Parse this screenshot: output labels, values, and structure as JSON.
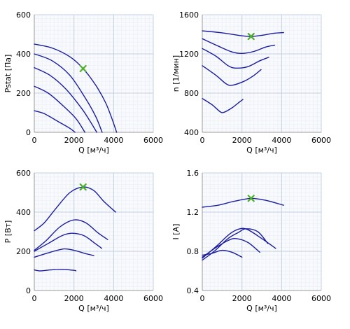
{
  "chart_data": [
    {
      "type": "line",
      "xlabel": "Q [м³/ч]",
      "ylabel": "Pstat [Па]",
      "xlim": [
        0,
        6000
      ],
      "ylim": [
        0,
        600
      ],
      "xticks": [
        0,
        2000,
        4000,
        6000
      ],
      "yticks": [
        0,
        200,
        400,
        600
      ],
      "xtick_labels": [
        "0",
        "2000",
        "4000",
        "6000"
      ],
      "ytick_labels": [
        "0",
        "200",
        "400",
        "600"
      ],
      "grid": true,
      "line_color": "#1c1c9e",
      "marker_color": "#4caf28",
      "series": [
        {
          "points": [
            [
              0,
              450
            ],
            [
              900,
              430
            ],
            [
              1800,
              385
            ],
            [
              2460,
              325
            ],
            [
              3100,
              240
            ],
            [
              3600,
              150
            ],
            [
              3950,
              60
            ],
            [
              4150,
              0
            ]
          ]
        },
        {
          "points": [
            [
              0,
              400
            ],
            [
              900,
              365
            ],
            [
              1800,
              290
            ],
            [
              2600,
              170
            ],
            [
              3100,
              80
            ],
            [
              3420,
              0
            ]
          ]
        },
        {
          "points": [
            [
              0,
              330
            ],
            [
              800,
              290
            ],
            [
              1600,
              220
            ],
            [
              2400,
              120
            ],
            [
              2850,
              50
            ],
            [
              3150,
              0
            ]
          ]
        },
        {
          "points": [
            [
              0,
              235
            ],
            [
              700,
              200
            ],
            [
              1400,
              140
            ],
            [
              2100,
              70
            ],
            [
              2550,
              0
            ]
          ]
        },
        {
          "points": [
            [
              0,
              110
            ],
            [
              500,
              95
            ],
            [
              1200,
              55
            ],
            [
              1800,
              20
            ],
            [
              2050,
              0
            ]
          ]
        }
      ],
      "marker": {
        "x": 2460,
        "y": 325
      }
    },
    {
      "type": "line",
      "xlabel": "Q [м³/ч]",
      "ylabel": "n [1/мин]",
      "xlim": [
        0,
        6000
      ],
      "ylim": [
        400,
        1600
      ],
      "xticks": [
        0,
        2000,
        4000,
        6000
      ],
      "yticks": [
        400,
        800,
        1200,
        1600
      ],
      "xtick_labels": [
        "0",
        "2000",
        "4000",
        "6000"
      ],
      "ytick_labels": [
        "400",
        "800",
        "1200",
        "1600"
      ],
      "grid": true,
      "line_color": "#1c1c9e",
      "marker_color": "#4caf28",
      "series": [
        {
          "points": [
            [
              0,
              1435
            ],
            [
              1000,
              1415
            ],
            [
              2000,
              1385
            ],
            [
              2460,
              1378
            ],
            [
              3000,
              1390
            ],
            [
              3600,
              1410
            ],
            [
              4100,
              1418
            ]
          ]
        },
        {
          "points": [
            [
              0,
              1355
            ],
            [
              800,
              1280
            ],
            [
              1500,
              1220
            ],
            [
              2000,
              1205
            ],
            [
              2600,
              1225
            ],
            [
              3200,
              1270
            ],
            [
              3650,
              1290
            ]
          ]
        },
        {
          "points": [
            [
              0,
              1255
            ],
            [
              700,
              1175
            ],
            [
              1300,
              1080
            ],
            [
              1700,
              1055
            ],
            [
              2300,
              1070
            ],
            [
              2900,
              1130
            ],
            [
              3350,
              1165
            ]
          ]
        },
        {
          "points": [
            [
              0,
              1080
            ],
            [
              700,
              980
            ],
            [
              1200,
              895
            ],
            [
              1500,
              880
            ],
            [
              2100,
              920
            ],
            [
              2600,
              980
            ],
            [
              2960,
              1040
            ]
          ]
        },
        {
          "points": [
            [
              0,
              745
            ],
            [
              500,
              680
            ],
            [
              900,
              610
            ],
            [
              1100,
              605
            ],
            [
              1500,
              650
            ],
            [
              1850,
              705
            ],
            [
              2050,
              735
            ]
          ]
        }
      ],
      "marker": {
        "x": 2460,
        "y": 1378
      }
    },
    {
      "type": "line",
      "xlabel": "Q [м³/ч]",
      "ylabel": "P [Вт]",
      "xlim": [
        0,
        6000
      ],
      "ylim": [
        0,
        600
      ],
      "xticks": [
        0,
        2000,
        4000,
        6000
      ],
      "yticks": [
        0,
        200,
        400,
        600
      ],
      "xtick_labels": [
        "0",
        "2000",
        "4000",
        "6000"
      ],
      "ytick_labels": [
        "0",
        "200",
        "400",
        "600"
      ],
      "grid": true,
      "line_color": "#1c1c9e",
      "marker_color": "#4caf28",
      "series": [
        {
          "points": [
            [
              0,
              305
            ],
            [
              500,
              345
            ],
            [
              1100,
              420
            ],
            [
              1800,
              500
            ],
            [
              2460,
              528
            ],
            [
              3000,
              510
            ],
            [
              3500,
              455
            ],
            [
              4100,
              400
            ]
          ]
        },
        {
          "points": [
            [
              0,
              205
            ],
            [
              600,
              255
            ],
            [
              1300,
              325
            ],
            [
              2000,
              360
            ],
            [
              2600,
              345
            ],
            [
              3200,
              295
            ],
            [
              3700,
              260
            ]
          ]
        },
        {
          "points": [
            [
              0,
              200
            ],
            [
              700,
              240
            ],
            [
              1400,
              280
            ],
            [
              1900,
              292
            ],
            [
              2500,
              280
            ],
            [
              3000,
              245
            ],
            [
              3400,
              215
            ]
          ]
        },
        {
          "points": [
            [
              0,
              170
            ],
            [
              800,
              195
            ],
            [
              1500,
              212
            ],
            [
              2000,
              205
            ],
            [
              2600,
              188
            ],
            [
              3000,
              178
            ]
          ]
        },
        {
          "points": [
            [
              0,
              105
            ],
            [
              300,
              100
            ],
            [
              800,
              105
            ],
            [
              1400,
              108
            ],
            [
              2000,
              103
            ],
            [
              2100,
              100
            ]
          ]
        }
      ],
      "marker": {
        "x": 2460,
        "y": 528
      }
    },
    {
      "type": "line",
      "xlabel": "Q [м³/ч]",
      "ylabel": "I [A]",
      "xlim": [
        0,
        6000
      ],
      "ylim": [
        0.4,
        1.6
      ],
      "xticks": [
        0,
        2000,
        4000,
        6000
      ],
      "yticks": [
        0.4,
        0.8,
        1.2,
        1.6
      ],
      "xtick_labels": [
        "0",
        "2000",
        "4000",
        "6000"
      ],
      "ytick_labels": [
        "0.4",
        "0.8",
        "1.2",
        "1.6"
      ],
      "grid": true,
      "line_color": "#1c1c9e",
      "marker_color": "#4caf28",
      "series": [
        {
          "points": [
            [
              0,
              1.25
            ],
            [
              800,
              1.27
            ],
            [
              1600,
              1.31
            ],
            [
              2460,
              1.34
            ],
            [
              3200,
              1.32
            ],
            [
              4100,
              1.27
            ]
          ]
        },
        {
          "points": [
            [
              0,
              0.73
            ],
            [
              700,
              0.85
            ],
            [
              1400,
              0.98
            ],
            [
              1900,
              1.03
            ],
            [
              2300,
              1.02
            ],
            [
              3000,
              0.93
            ],
            [
              3700,
              0.83
            ]
          ]
        },
        {
          "points": [
            [
              0,
              0.71
            ],
            [
              600,
              0.8
            ],
            [
              1300,
              0.93
            ],
            [
              1800,
              0.99
            ],
            [
              2200,
              1.03
            ],
            [
              2800,
              1.0
            ],
            [
              3300,
              0.88
            ]
          ]
        },
        {
          "points": [
            [
              0,
              0.74
            ],
            [
              700,
              0.84
            ],
            [
              1300,
              0.91
            ],
            [
              1700,
              0.93
            ],
            [
              2300,
              0.89
            ],
            [
              2900,
              0.79
            ]
          ]
        },
        {
          "points": [
            [
              0,
              0.76
            ],
            [
              500,
              0.78
            ],
            [
              1000,
              0.81
            ],
            [
              1500,
              0.79
            ],
            [
              2000,
              0.74
            ]
          ]
        }
      ],
      "marker": {
        "x": 2460,
        "y": 1.34
      }
    }
  ]
}
